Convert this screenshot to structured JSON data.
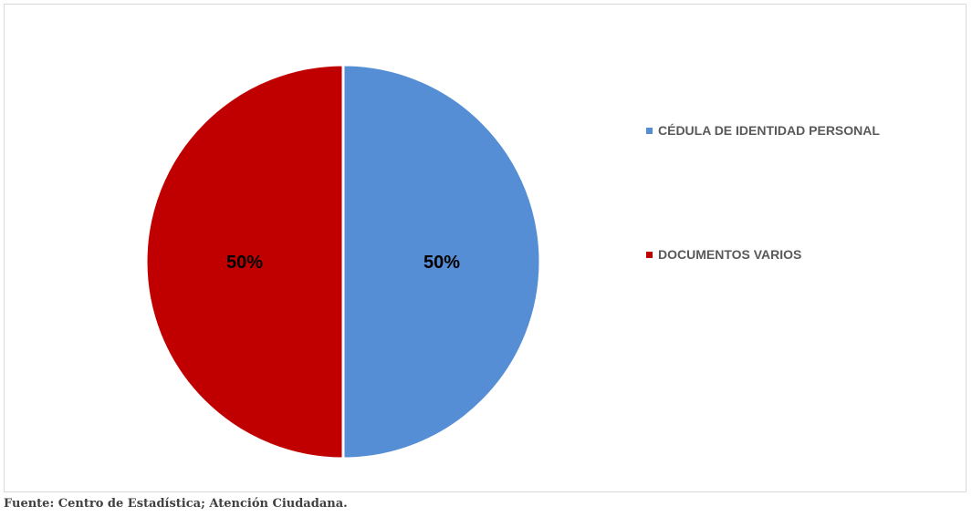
{
  "chart_data": {
    "type": "pie",
    "categories": [
      "CÉDULA DE IDENTIDAD PERSONAL",
      "DOCUMENTOS VARIOS"
    ],
    "values": [
      50,
      50
    ],
    "data_labels": [
      "50%",
      "50%"
    ],
    "colors": [
      "#558ED5",
      "#C00000"
    ],
    "legend_position": "right",
    "title": ""
  },
  "legend": {
    "items": [
      {
        "label": "CÉDULA DE IDENTIDAD PERSONAL",
        "color": "#558ED5"
      },
      {
        "label": "DOCUMENTOS VARIOS",
        "color": "#C00000"
      }
    ]
  },
  "source": "Fuente: Centro de Estadística; Atención Ciudadana."
}
